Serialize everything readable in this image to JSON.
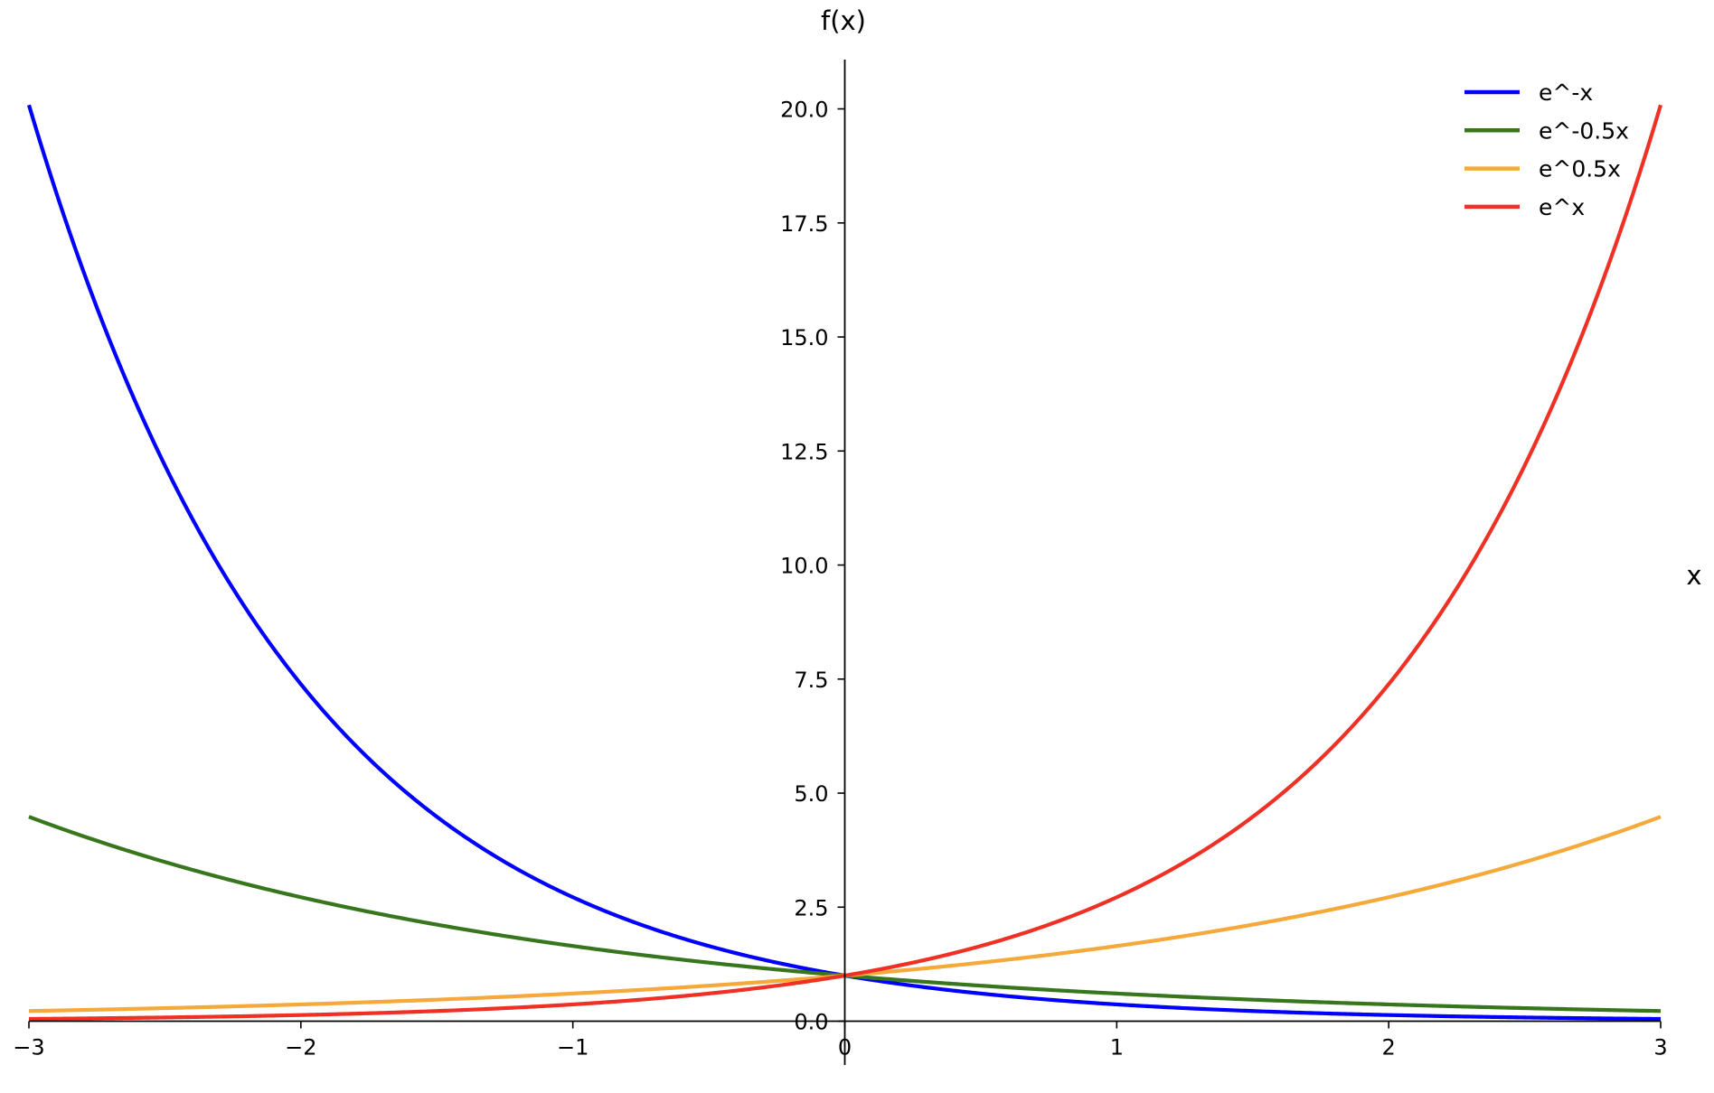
{
  "chart_data": {
    "type": "line",
    "title": "",
    "xlabel": "x",
    "ylabel": "f(x)",
    "xlim": [
      -3,
      3
    ],
    "ylim": [
      -0.96,
      21.08
    ],
    "grid": false,
    "legend_placement": "top-right",
    "spines": "centered at origin",
    "x_ticks": [
      -3,
      -2,
      -1,
      0,
      1,
      2,
      3
    ],
    "x_tick_labels": [
      "−3",
      "−2",
      "−1",
      "0",
      "1",
      "2",
      "3"
    ],
    "y_ticks": [
      0,
      2.5,
      5,
      7.5,
      10,
      12.5,
      15,
      17.5,
      20
    ],
    "y_tick_labels": [
      "0.0",
      "2.5",
      "5.0",
      "7.5",
      "10.0",
      "12.5",
      "15.0",
      "17.5",
      "20.0"
    ],
    "x": [
      -3,
      -2,
      -1,
      0,
      1,
      2,
      3
    ],
    "series": [
      {
        "name": "e^-x",
        "color": "#0000ff",
        "exponent_coefficient": -1,
        "values": [
          20.09,
          7.39,
          2.72,
          1.0,
          0.37,
          0.14,
          0.05
        ]
      },
      {
        "name": "e^-0.5x",
        "color": "#38761d",
        "exponent_coefficient": -0.5,
        "values": [
          4.48,
          2.72,
          1.65,
          1.0,
          0.61,
          0.37,
          0.22
        ]
      },
      {
        "name": "e^0.5x",
        "color": "#f4a93a",
        "exponent_coefficient": 0.5,
        "values": [
          0.22,
          0.37,
          0.61,
          1.0,
          1.65,
          2.72,
          4.48
        ]
      },
      {
        "name": "e^x",
        "color": "#ee3124",
        "exponent_coefficient": 1,
        "values": [
          0.05,
          0.14,
          0.37,
          1.0,
          2.72,
          7.39,
          20.09
        ]
      }
    ]
  }
}
